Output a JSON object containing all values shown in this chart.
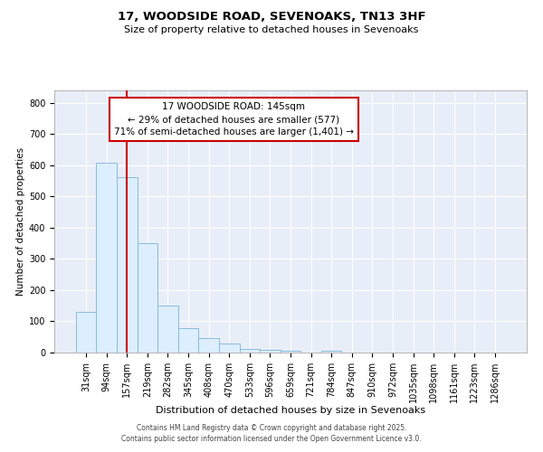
{
  "title1": "17, WOODSIDE ROAD, SEVENOAKS, TN13 3HF",
  "title2": "Size of property relative to detached houses in Sevenoaks",
  "xlabel": "Distribution of detached houses by size in Sevenoaks",
  "ylabel": "Number of detached properties",
  "categories": [
    "31sqm",
    "94sqm",
    "157sqm",
    "219sqm",
    "282sqm",
    "345sqm",
    "408sqm",
    "470sqm",
    "533sqm",
    "596sqm",
    "659sqm",
    "721sqm",
    "784sqm",
    "847sqm",
    "910sqm",
    "972sqm",
    "1035sqm",
    "1098sqm",
    "1161sqm",
    "1223sqm",
    "1286sqm"
  ],
  "values": [
    130,
    608,
    562,
    350,
    150,
    78,
    47,
    30,
    13,
    10,
    6,
    0,
    5,
    0,
    0,
    0,
    0,
    0,
    0,
    0,
    0
  ],
  "bar_color": "#ddeeff",
  "bar_edge_color": "#88bbdd",
  "vline_x": 2,
  "vline_color": "#cc0000",
  "annotation_text": "17 WOODSIDE ROAD: 145sqm\n← 29% of detached houses are smaller (577)\n71% of semi-detached houses are larger (1,401) →",
  "annotation_box_color": "#cc0000",
  "footer1": "Contains HM Land Registry data © Crown copyright and database right 2025.",
  "footer2": "Contains public sector information licensed under the Open Government Licence v3.0.",
  "bg_color": "#e8eef8",
  "grid_color": "#ffffff",
  "ylim": [
    0,
    840
  ],
  "yticks": [
    0,
    100,
    200,
    300,
    400,
    500,
    600,
    700,
    800
  ],
  "title1_fontsize": 9.5,
  "title2_fontsize": 8.0,
  "xlabel_fontsize": 8.0,
  "ylabel_fontsize": 7.5,
  "tick_fontsize": 7.0,
  "ann_fontsize": 7.5,
  "footer_fontsize": 5.5
}
